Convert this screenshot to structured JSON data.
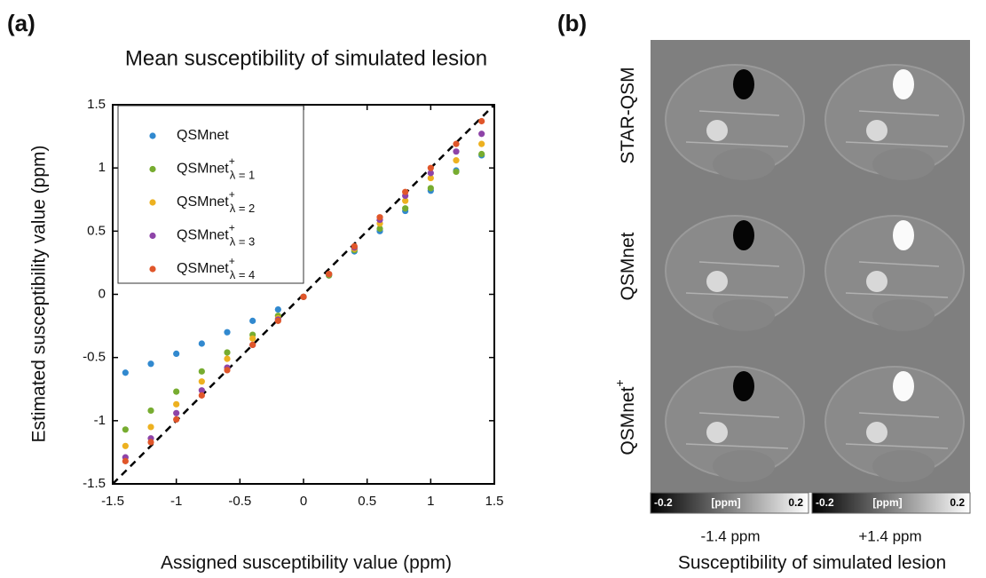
{
  "chart_data": {
    "type": "scatter",
    "panel_label": "(a)",
    "title": "Mean susceptibility of simulated lesion",
    "x_label": "Assigned susceptibility value (ppm)",
    "y_label": "Estimated susceptibility value (ppm)",
    "x": [
      -1.4,
      -1.2,
      -1.0,
      -0.8,
      -0.6,
      -0.4,
      -0.2,
      0,
      0.2,
      0.4,
      0.6,
      0.8,
      1.0,
      1.2,
      1.4
    ],
    "series": [
      {
        "name": "QSMnet",
        "color": "#3189cf",
        "values": [
          -0.62,
          -0.55,
          -0.47,
          -0.39,
          -0.3,
          -0.21,
          -0.12,
          -0.02,
          0.15,
          0.34,
          0.5,
          0.66,
          0.82,
          0.98,
          1.1
        ]
      },
      {
        "name": "QSMnet",
        "name_sup": "+",
        "name_sub": "λ = 1",
        "color": "#77ac30",
        "values": [
          -1.07,
          -0.92,
          -0.77,
          -0.61,
          -0.46,
          -0.32,
          -0.17,
          -0.02,
          0.15,
          0.35,
          0.52,
          0.68,
          0.84,
          0.97,
          1.11
        ]
      },
      {
        "name": "QSMnet",
        "name_sup": "+",
        "name_sub": "λ = 2",
        "color": "#edb120",
        "values": [
          -1.2,
          -1.05,
          -0.87,
          -0.69,
          -0.51,
          -0.35,
          -0.19,
          -0.02,
          0.16,
          0.36,
          0.56,
          0.74,
          0.92,
          1.06,
          1.19
        ]
      },
      {
        "name": "QSMnet",
        "name_sup": "+",
        "name_sub": "λ = 3",
        "color": "#8e44a8",
        "values": [
          -1.29,
          -1.14,
          -0.94,
          -0.76,
          -0.58,
          -0.4,
          -0.2,
          -0.02,
          0.16,
          0.37,
          0.59,
          0.78,
          0.96,
          1.13,
          1.27
        ]
      },
      {
        "name": "QSMnet",
        "name_sup": "+",
        "name_sub": "λ = 4",
        "color": "#e0562a",
        "values": [
          -1.32,
          -1.17,
          -0.99,
          -0.8,
          -0.6,
          -0.4,
          -0.21,
          -0.02,
          0.16,
          0.38,
          0.61,
          0.81,
          1.0,
          1.19,
          1.37
        ]
      }
    ],
    "xlim": [
      -1.5,
      1.5
    ],
    "ylim": [
      -1.5,
      1.5
    ],
    "xticks": [
      -1.5,
      -1,
      -0.5,
      0,
      0.5,
      1,
      1.5
    ],
    "yticks": [
      -1.5,
      -1,
      -0.5,
      0,
      0.5,
      1,
      1.5
    ],
    "legend": "upper-left",
    "identity_line": true
  },
  "panel_b": {
    "panel_label": "(b)",
    "rows": [
      {
        "label": "STAR-QSM"
      },
      {
        "label": "QSMnet"
      },
      {
        "label": "QSMnet",
        "sup": "+"
      }
    ],
    "colorbar": {
      "min": "-0.2",
      "unit": "[ppm]",
      "max": "0.2"
    },
    "columns": [
      "-1.4 ppm",
      "+1.4 ppm"
    ],
    "x_label": "Susceptibility of simulated lesion"
  }
}
